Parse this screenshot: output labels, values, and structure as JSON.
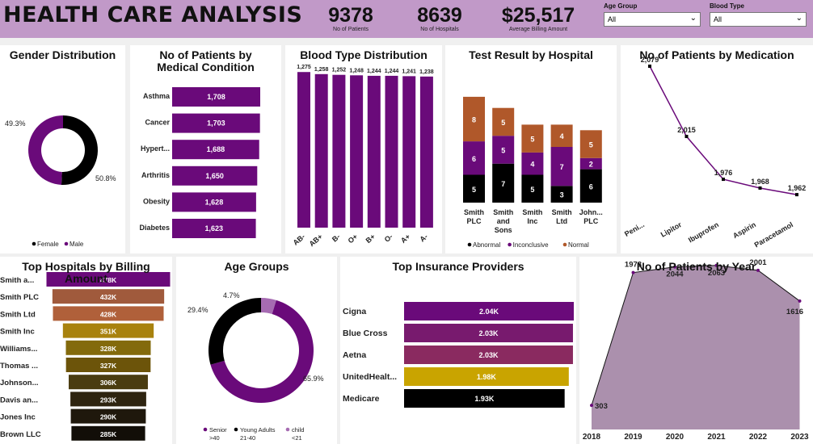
{
  "header": {
    "title": "HEALTH CARE ANALYSIS",
    "kpis": [
      {
        "value": "9378",
        "label": "No of Patients"
      },
      {
        "value": "8639",
        "label": "No of Hospitals"
      },
      {
        "value": "$25,517",
        "label": "Average Billing Amount"
      }
    ],
    "filters": [
      {
        "label": "Age Group",
        "value": "All"
      },
      {
        "label": "Blood Type",
        "value": "All"
      }
    ]
  },
  "colors": {
    "purple": "#6a0a7a",
    "black": "#000000",
    "orange": "#b0582a",
    "header_bg": "#c199c8",
    "area_fill": "#ab90ad"
  },
  "chart_data": [
    {
      "id": "gender",
      "type": "pie",
      "title": "Gender Distribution",
      "categories": [
        "Female",
        "Male"
      ],
      "values": [
        50.8,
        49.3
      ],
      "labels": [
        "50.8%",
        "49.3%"
      ],
      "colors": [
        "#000000",
        "#6a0a7a"
      ],
      "legend": "bottom"
    },
    {
      "id": "condition",
      "type": "bar",
      "orientation": "horizontal",
      "title": "No of Patients by Medical Condition",
      "categories": [
        "Asthma",
        "Cancer",
        "Hypert...",
        "Arthritis",
        "Obesity",
        "Diabetes"
      ],
      "values": [
        1708,
        1703,
        1688,
        1650,
        1628,
        1623
      ],
      "labels": [
        "1,708",
        "1,703",
        "1,688",
        "1,650",
        "1,628",
        "1,623"
      ],
      "color": "#6a0a7a"
    },
    {
      "id": "blood",
      "type": "bar",
      "title": "Blood Type Distribution",
      "categories": [
        "AB-",
        "AB+",
        "B-",
        "O+",
        "B+",
        "O-",
        "A+",
        "A-"
      ],
      "values": [
        1275,
        1258,
        1252,
        1248,
        1244,
        1244,
        1241,
        1238
      ],
      "labels": [
        "1,275",
        "1,258",
        "1,252",
        "1,248",
        "1,244",
        "1,244",
        "1,241",
        "1,238"
      ],
      "color": "#6a0a7a"
    },
    {
      "id": "testresult",
      "type": "bar",
      "stacked": true,
      "title": "Test Result by Hospital",
      "categories": [
        "Smith PLC",
        "Smith and Sons",
        "Smith Inc",
        "Smith Ltd",
        "John... PLC"
      ],
      "series": [
        {
          "name": "Abnormal",
          "values": [
            5,
            7,
            5,
            3,
            6
          ],
          "color": "#000000"
        },
        {
          "name": "Inconclusive",
          "values": [
            6,
            5,
            4,
            7,
            2
          ],
          "color": "#6a0a7a"
        },
        {
          "name": "Normal",
          "values": [
            8,
            5,
            5,
            4,
            5
          ],
          "color": "#b0582a"
        }
      ],
      "legend": "bottom"
    },
    {
      "id": "medication",
      "type": "line",
      "title": "No of Patients by Medication",
      "categories": [
        "Peni...",
        "Lipitor",
        "Ibuprofen",
        "Aspirin",
        "Paracetamol"
      ],
      "values": [
        2079,
        2015,
        1976,
        1968,
        1962
      ],
      "labels": [
        "2,079",
        "2,015",
        "1,976",
        "1,968",
        "1,962"
      ],
      "color": "#6a0a7a"
    },
    {
      "id": "billing",
      "type": "bar",
      "orientation": "horizontal",
      "title": "Top Hospitals by Billing Amount",
      "categories": [
        "Smith a...",
        "Smith PLC",
        "Smith Ltd",
        "Smith Inc",
        "Williams...",
        "Thomas ...",
        "Johnson...",
        "Davis an...",
        "Jones Inc",
        "Brown LLC"
      ],
      "values": [
        478,
        432,
        428,
        351,
        328,
        327,
        306,
        293,
        290,
        285
      ],
      "labels": [
        "478K",
        "432K",
        "428K",
        "351K",
        "328K",
        "327K",
        "306K",
        "293K",
        "290K",
        "285K"
      ],
      "colors": [
        "#6a0a7a",
        "#a05a3c",
        "#b0603a",
        "#a8820e",
        "#836a0c",
        "#6c540a",
        "#4a3c10",
        "#2e2410",
        "#1f180c",
        "#120e08"
      ]
    },
    {
      "id": "agegroups",
      "type": "pie",
      "title": "Age Groups",
      "categories": [
        "Senior >40",
        "Young Adults 21-40",
        "child <21"
      ],
      "values": [
        65.9,
        29.4,
        4.7
      ],
      "labels": [
        "65.9%",
        "29.4%",
        "4.7%"
      ],
      "colors": [
        "#6a0a7a",
        "#000000",
        "#a66bb2"
      ],
      "legend": "bottom"
    },
    {
      "id": "insurance",
      "type": "bar",
      "orientation": "horizontal",
      "title": "Top Insurance Providers",
      "categories": [
        "Cigna",
        "Blue Cross",
        "Aetna",
        "UnitedHealt...",
        "Medicare"
      ],
      "values": [
        2.04,
        2.03,
        2.03,
        1.98,
        1.93
      ],
      "labels": [
        "2.04K",
        "2.03K",
        "2.03K",
        "1.98K",
        "1.93K"
      ],
      "colors": [
        "#6a0a7a",
        "#781a6e",
        "#8a2a60",
        "#c9a400",
        "#000000"
      ]
    },
    {
      "id": "year",
      "type": "area",
      "title": "No of Patients by Year",
      "categories": [
        "2018",
        "2019",
        "2020",
        "2021",
        "2022",
        "2023"
      ],
      "values": [
        303,
        1973,
        2044,
        2063,
        2001,
        1616
      ],
      "labels": [
        "303",
        "1973",
        "2044",
        "2063",
        "2001",
        "1616"
      ],
      "color": "#ab90ad"
    }
  ]
}
